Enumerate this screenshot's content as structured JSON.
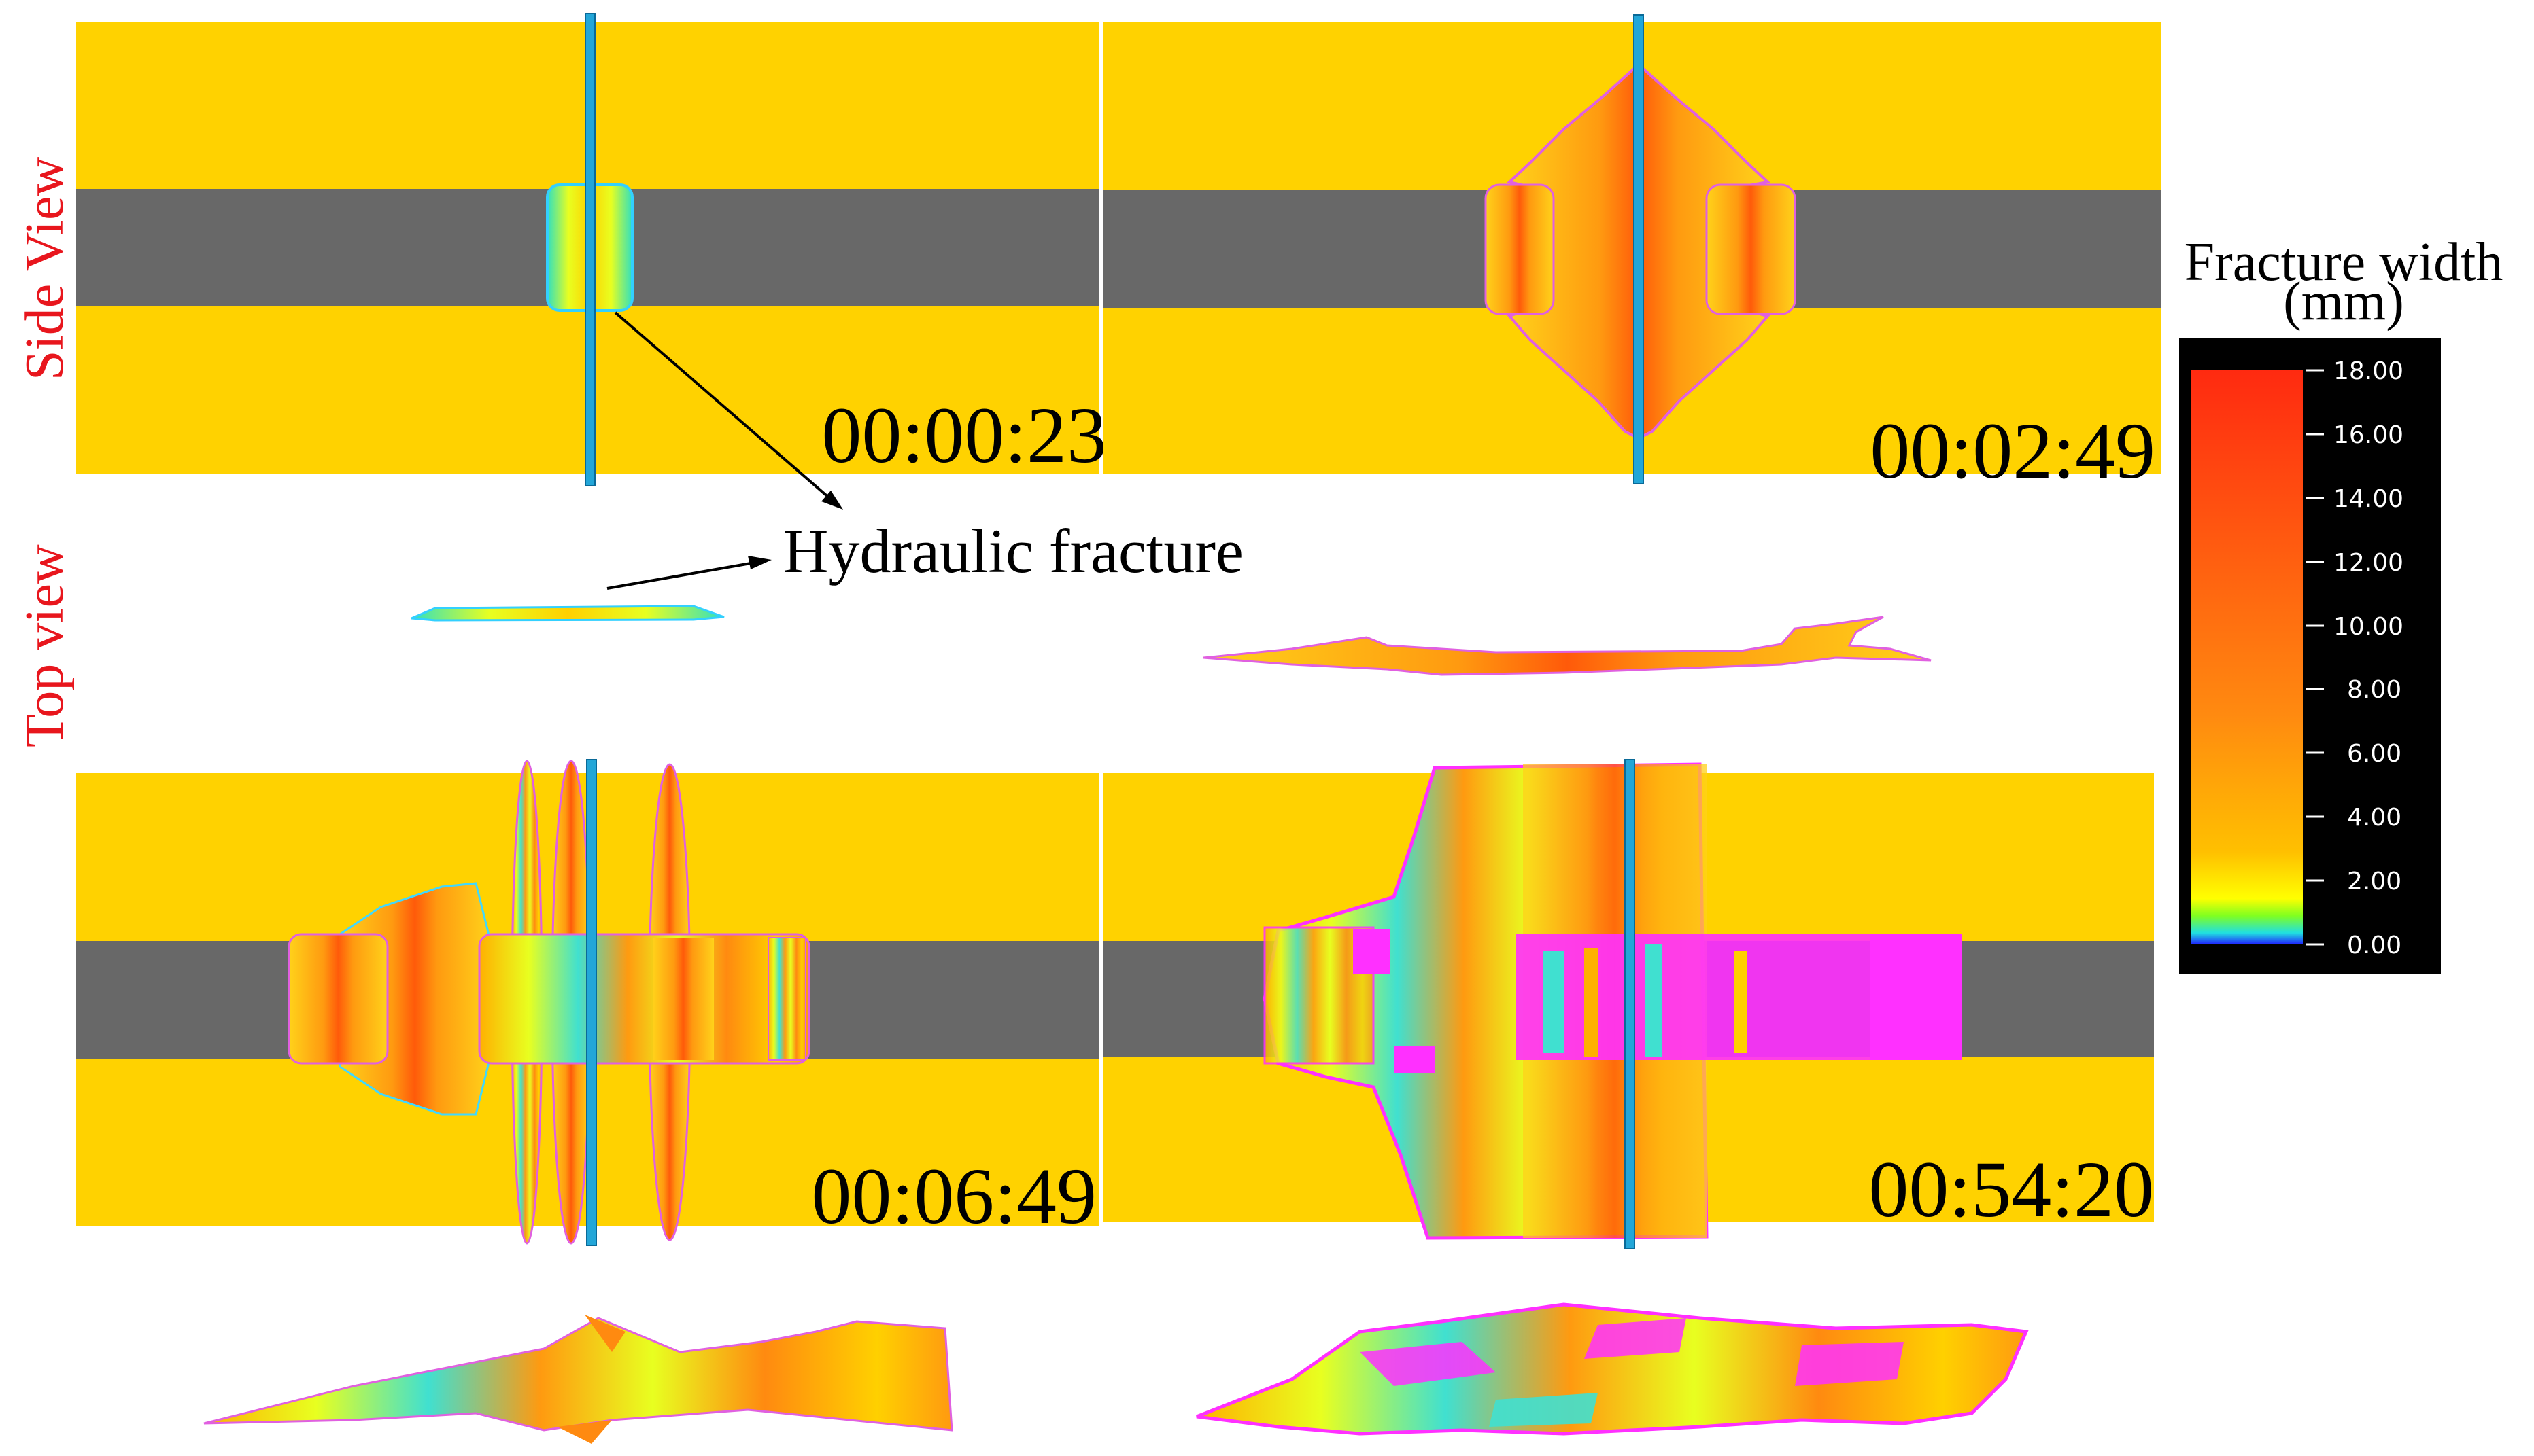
{
  "figure": {
    "row_labels": {
      "side_view": "Side View",
      "top_view": "Top view"
    },
    "annotation": "Hydraulic fracture",
    "panels": [
      {
        "id": "p1",
        "time": "00:00:23"
      },
      {
        "id": "p2",
        "time": "00:02:49"
      },
      {
        "id": "p3",
        "time": "00:06:49"
      },
      {
        "id": "p4",
        "time": "00:54:20"
      }
    ],
    "colorbar": {
      "title_line1": "Fracture  width",
      "title_line2": "(mm)",
      "ticks": [
        "18.00",
        "16.00",
        "14.00",
        "12.00",
        "10.00",
        "8.00",
        "6.00",
        "4.00",
        "2.00",
        "0.00"
      ]
    },
    "colors": {
      "layer": "#ffd200",
      "shale": "#686868",
      "wellbore": "#23a6d8",
      "label": "#e8161d"
    }
  }
}
